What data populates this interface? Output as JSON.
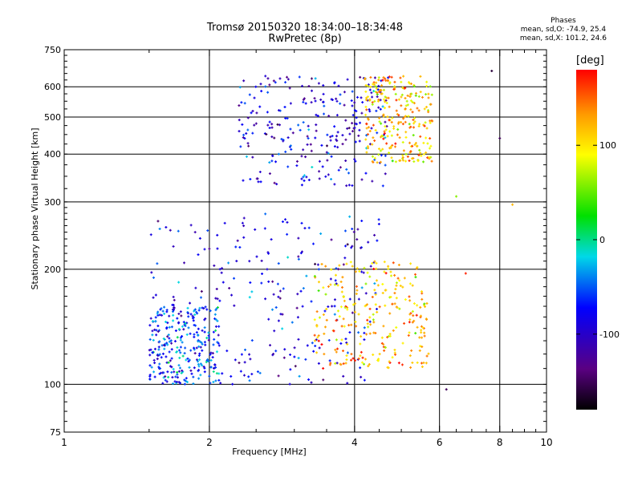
{
  "title": {
    "line1": "Tromsø 20150320 18:34:00–18:34:48",
    "line2": "RwPretec (8p)"
  },
  "phase_stats": {
    "heading": "Phases",
    "o_line": "mean, sd,O: -74.9, 25.4",
    "x_line": "mean, sd,X: 101.2, 24.6"
  },
  "colorbar": {
    "unit": "[deg]",
    "ticks": [
      "100",
      "0",
      "-100"
    ],
    "tick_values": [
      100,
      0,
      -100
    ],
    "range": [
      -180,
      180
    ],
    "colormap": "rainbow (black at -180, purple, blue, cyan, green, yellow, orange, red at 180)"
  },
  "chart_data": {
    "type": "scatter",
    "xlabel": "Frequency [MHz]",
    "ylabel": "Stationary phase Virtual Height [km]",
    "xscale": "log",
    "yscale": "log",
    "xlim": [
      1,
      10
    ],
    "ylim": [
      75,
      750
    ],
    "x_ticks": [
      "1",
      "2",
      "4",
      "6",
      "8",
      "10"
    ],
    "x_tick_values": [
      1,
      2,
      4,
      6,
      8,
      10
    ],
    "y_ticks": [
      "75",
      "100",
      "200",
      "300",
      "400",
      "500",
      "600",
      "750"
    ],
    "y_tick_values": [
      75,
      100,
      200,
      300,
      400,
      500,
      600,
      750
    ],
    "grid": true,
    "clusters": [
      {
        "desc": "lower O-trace",
        "x_range": [
          1.5,
          4.5
        ],
        "y_range": [
          100,
          280
        ],
        "phase_mean": -85
      },
      {
        "desc": "lower X-trace",
        "x_range": [
          3.3,
          5.7
        ],
        "y_range": [
          110,
          210
        ],
        "phase_mean": 120
      },
      {
        "desc": "lower left low-frequency echoes",
        "x_range": [
          1.5,
          2.1
        ],
        "y_range": [
          100,
          160
        ],
        "phase_mean": -55
      },
      {
        "desc": "upper O-trace",
        "x_range": [
          2.3,
          4.7
        ],
        "y_range": [
          330,
          640
        ],
        "phase_mean": -90
      },
      {
        "desc": "upper X-trace",
        "x_range": [
          4.2,
          5.8
        ],
        "y_range": [
          380,
          640
        ],
        "phase_mean": 115
      }
    ],
    "outliers": [
      {
        "x": 6.8,
        "y": 195,
        "phase": 170
      },
      {
        "x": 8.5,
        "y": 295,
        "phase": 120
      },
      {
        "x": 6.2,
        "y": 97,
        "phase": -150
      },
      {
        "x": 7.7,
        "y": 660,
        "phase": -160
      },
      {
        "x": 8.0,
        "y": 440,
        "phase": -150
      },
      {
        "x": 6.5,
        "y": 310,
        "phase": 60
      }
    ]
  }
}
